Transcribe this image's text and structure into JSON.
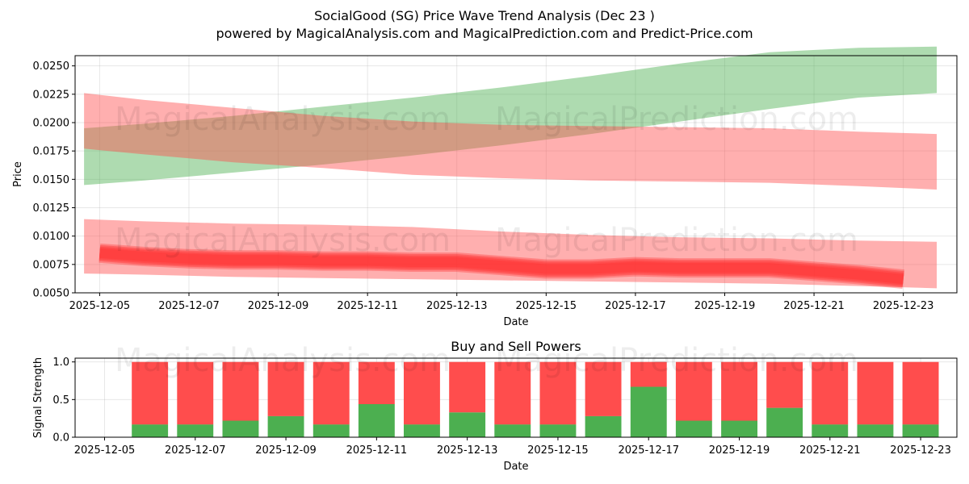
{
  "header": {
    "title": "SocialGood (SG) Price Wave Trend Analysis (Dec 23 )",
    "subtitle": "powered by MagicalAnalysis.com and MagicalPrediction.com and Predict-Price.com"
  },
  "watermarks": [
    "MagicalAnalysis.com",
    "MagicalPrediction.com"
  ],
  "colors": {
    "green_band": "#4caf50",
    "red_band": "#ff4d4d",
    "red_line": "#ff3333",
    "buy": "#4caf50",
    "sell": "#ff4d4d"
  },
  "chart_data": [
    {
      "type": "area",
      "title": "",
      "xlabel": "Date",
      "ylabel": "Price",
      "xlim": [
        -0.55,
        19.2
      ],
      "ylim": [
        0.005,
        0.0259
      ],
      "x_ticks": [
        {
          "pos": 0,
          "label": "2025-12-05"
        },
        {
          "pos": 2,
          "label": "2025-12-07"
        },
        {
          "pos": 4,
          "label": "2025-12-09"
        },
        {
          "pos": 6,
          "label": "2025-12-11"
        },
        {
          "pos": 8,
          "label": "2025-12-13"
        },
        {
          "pos": 10,
          "label": "2025-12-15"
        },
        {
          "pos": 12,
          "label": "2025-12-17"
        },
        {
          "pos": 14,
          "label": "2025-12-19"
        },
        {
          "pos": 16,
          "label": "2025-12-21"
        },
        {
          "pos": 18,
          "label": "2025-12-23"
        }
      ],
      "y_ticks": [
        "0.0050",
        "0.0075",
        "0.0100",
        "0.0125",
        "0.0150",
        "0.0175",
        "0.0200",
        "0.0225",
        "0.0250"
      ],
      "grid": true,
      "series": [
        {
          "name": "green band (rising)",
          "x": [
            -0.35,
            1,
            3,
            5,
            7,
            9,
            11,
            13,
            15,
            17,
            18.75
          ],
          "upper": [
            0.0195,
            0.0199,
            0.0206,
            0.0214,
            0.0222,
            0.0231,
            0.0241,
            0.0252,
            0.0262,
            0.0266,
            0.0267
          ],
          "lower": [
            0.0145,
            0.0149,
            0.0156,
            0.0163,
            0.0171,
            0.018,
            0.019,
            0.0201,
            0.0212,
            0.0222,
            0.0226
          ]
        },
        {
          "name": "red band (upper)",
          "x": [
            -0.35,
            1,
            3,
            5,
            7,
            9,
            11,
            13,
            15,
            17,
            18.75
          ],
          "upper": [
            0.0226,
            0.022,
            0.0213,
            0.0206,
            0.0201,
            0.0198,
            0.0197,
            0.0196,
            0.0195,
            0.0192,
            0.019
          ],
          "lower": [
            0.0177,
            0.0172,
            0.0165,
            0.016,
            0.0154,
            0.0151,
            0.0149,
            0.0148,
            0.0147,
            0.0144,
            0.0141
          ]
        },
        {
          "name": "red band (lower)",
          "x": [
            -0.35,
            1,
            3,
            5,
            7,
            9,
            11,
            13,
            15,
            17,
            18.75
          ],
          "upper": [
            0.0115,
            0.0113,
            0.0111,
            0.011,
            0.0108,
            0.0104,
            0.0101,
            0.0099,
            0.0098,
            0.0096,
            0.0095
          ],
          "lower": [
            0.0067,
            0.0066,
            0.0064,
            0.0063,
            0.0062,
            0.0061,
            0.006,
            0.0059,
            0.0058,
            0.0056,
            0.0054
          ]
        },
        {
          "name": "price wave line",
          "x": [
            0,
            1,
            2,
            3,
            4,
            5,
            6,
            7,
            8,
            9,
            10,
            11,
            12,
            13,
            14,
            15,
            16,
            17,
            18
          ],
          "values": [
            0.0085,
            0.0082,
            0.008,
            0.0079,
            0.0079,
            0.0078,
            0.0078,
            0.0077,
            0.0077,
            0.0074,
            0.0071,
            0.0071,
            0.0073,
            0.0072,
            0.0072,
            0.0072,
            0.0069,
            0.0066,
            0.0062
          ]
        }
      ]
    },
    {
      "type": "bar",
      "title": "Buy and Sell Powers",
      "xlabel": "Date",
      "ylabel": "Signal Strength",
      "xlim": [
        -0.65,
        18.8
      ],
      "ylim": [
        0,
        1.05
      ],
      "x_ticks": [
        {
          "pos": 0,
          "label": "2025-12-05"
        },
        {
          "pos": 2,
          "label": "2025-12-07"
        },
        {
          "pos": 4,
          "label": "2025-12-09"
        },
        {
          "pos": 6,
          "label": "2025-12-11"
        },
        {
          "pos": 8,
          "label": "2025-12-13"
        },
        {
          "pos": 10,
          "label": "2025-12-15"
        },
        {
          "pos": 12,
          "label": "2025-12-17"
        },
        {
          "pos": 14,
          "label": "2025-12-19"
        },
        {
          "pos": 16,
          "label": "2025-12-21"
        },
        {
          "pos": 18,
          "label": "2025-12-23"
        }
      ],
      "y_ticks": [
        "0.0",
        "0.5",
        "1.0"
      ],
      "grid": true,
      "x": [
        1,
        2,
        3,
        4,
        5,
        6,
        7,
        8,
        9,
        10,
        11,
        12,
        13,
        14,
        15,
        16,
        17,
        18
      ],
      "series": [
        {
          "name": "Buy",
          "values": [
            0.17,
            0.17,
            0.22,
            0.28,
            0.17,
            0.44,
            0.17,
            0.33,
            0.17,
            0.17,
            0.28,
            0.67,
            0.22,
            0.22,
            0.39,
            0.17,
            0.17,
            0.17
          ]
        },
        {
          "name": "Sell",
          "values": [
            0.83,
            0.83,
            0.78,
            0.72,
            0.83,
            0.56,
            0.83,
            0.67,
            0.83,
            0.83,
            0.72,
            0.33,
            0.78,
            0.78,
            0.61,
            0.83,
            0.83,
            0.83
          ]
        }
      ]
    }
  ]
}
